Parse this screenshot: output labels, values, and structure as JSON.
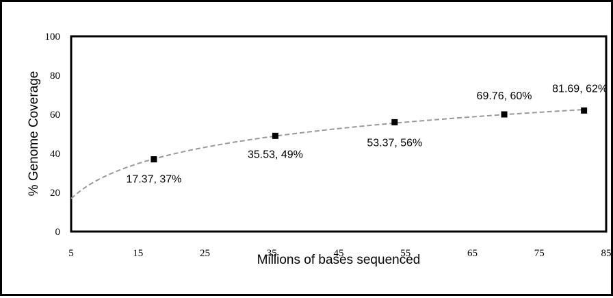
{
  "chart_data": {
    "type": "scatter",
    "title": "",
    "xlabel": "Millions of bases sequenced",
    "ylabel": "% Genome Coverage",
    "xlim": [
      5,
      85
    ],
    "ylim": [
      0,
      100
    ],
    "xticks": [
      5,
      15,
      25,
      35,
      45,
      55,
      65,
      75,
      85
    ],
    "yticks": [
      0,
      20,
      40,
      60,
      80,
      100
    ],
    "xtick_labels": [
      "5",
      "15",
      "25",
      "35",
      "45",
      "55",
      "65",
      "75",
      "85"
    ],
    "ytick_labels": [
      "0",
      "20",
      "40",
      "60",
      "80",
      "100"
    ],
    "grid": false,
    "legend": "none",
    "series": [
      {
        "x": [
          17.37,
          35.53,
          53.37,
          69.76,
          81.69
        ],
        "y": [
          37,
          49,
          56,
          60,
          62
        ],
        "color": "#000000",
        "labels": [
          "17.37, 37%",
          "35.53, 49%",
          "53.37, 56%",
          "69.76, 60%",
          "81.69, 62%"
        ]
      }
    ],
    "trendline": {
      "type": "logarithmic",
      "style": "dashed",
      "color": "#999999"
    }
  }
}
